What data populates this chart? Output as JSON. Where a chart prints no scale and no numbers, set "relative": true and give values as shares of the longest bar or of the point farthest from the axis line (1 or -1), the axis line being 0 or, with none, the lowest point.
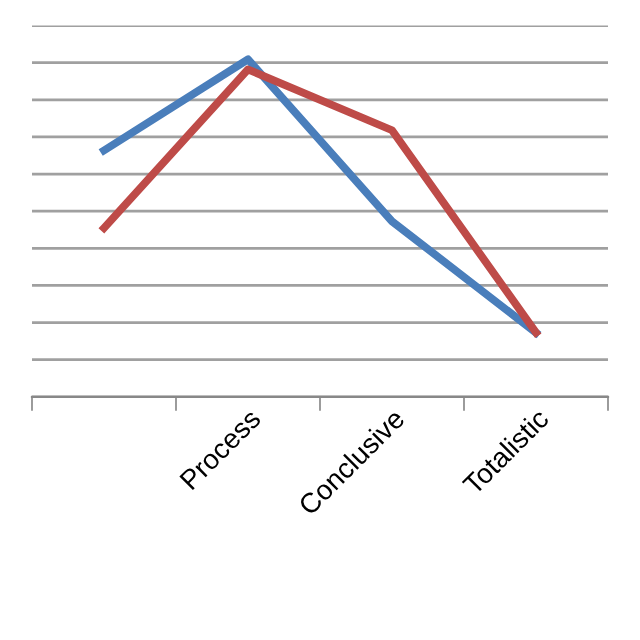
{
  "chart_data": {
    "type": "line",
    "relative": true,
    "grid": "y",
    "line_style": "solid",
    "marker": "none",
    "categories": [
      null,
      "Process",
      "Conclusive",
      "Totalistic"
    ],
    "series": [
      {
        "color": "#4a7ebb",
        "values": [
          0.73,
          1,
          0.52,
          0.19
        ]
      },
      {
        "color": "#be4b48",
        "values": [
          0.5,
          0.97,
          0.79,
          0.19
        ]
      }
    ]
  }
}
